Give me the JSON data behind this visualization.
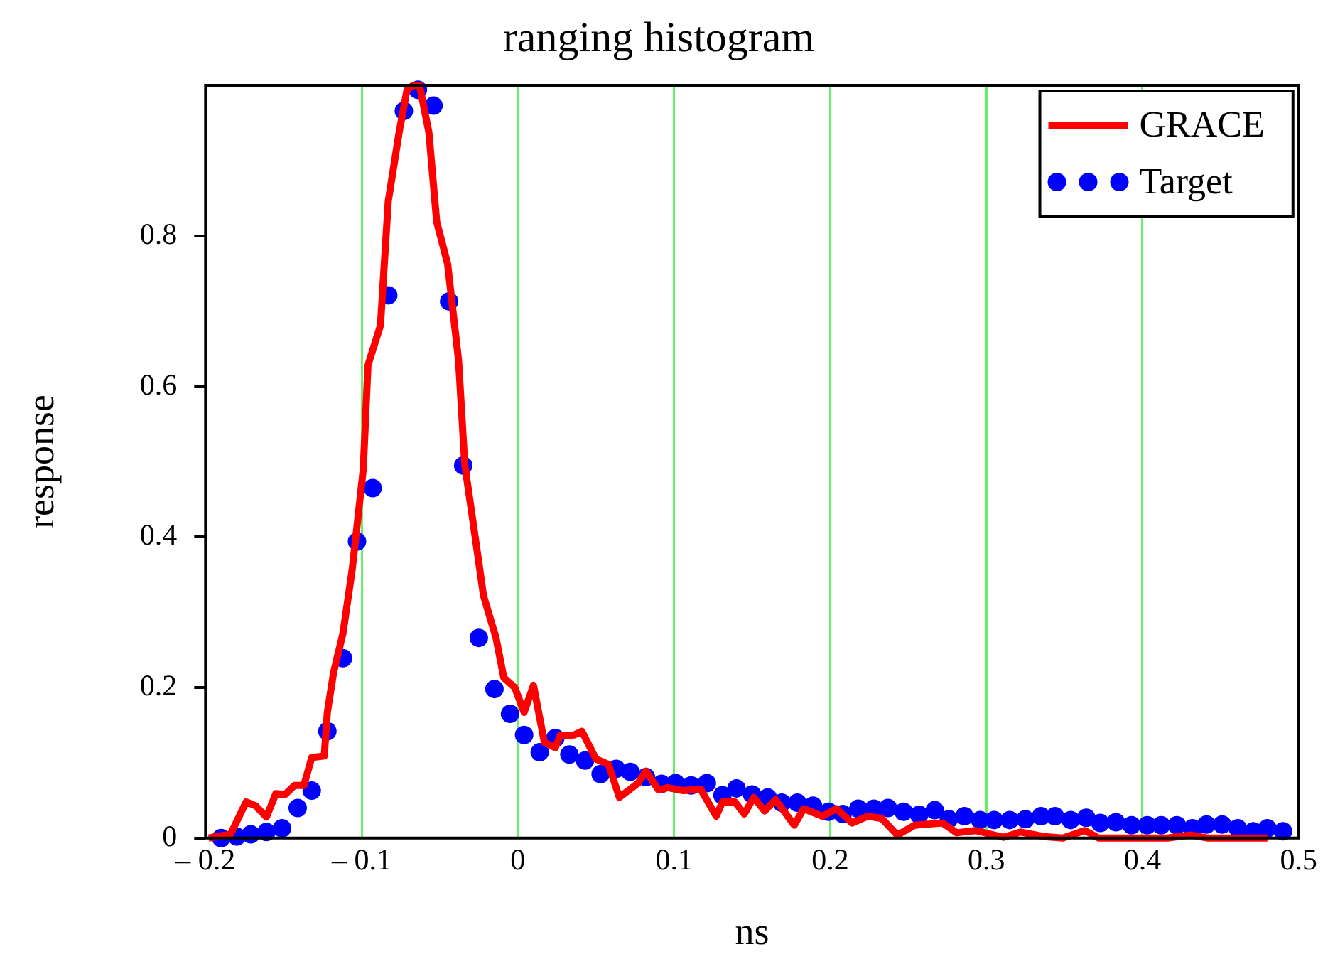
{
  "chart_data": {
    "type": "line",
    "title": "ranging histogram",
    "xlabel": "ns",
    "ylabel": "response",
    "xlim": [
      -0.2,
      0.5
    ],
    "xticks": [
      {
        "value": -0.2,
        "label": "– 0.2"
      },
      {
        "value": -0.1,
        "label": "– 0.1"
      },
      0,
      0.1,
      0.2,
      0.3,
      0.4,
      0.5
    ],
    "ylim": [
      0,
      1
    ],
    "yticks": [
      0,
      0.2,
      0.4,
      0.6,
      0.8
    ],
    "grid": "x",
    "legend": "top right",
    "series": [
      {
        "name": "GRACE",
        "color": "#ff0000",
        "marker": "none",
        "line_style": "solid",
        "x": [
          -0.198,
          -0.184,
          -0.174,
          -0.168,
          -0.161,
          -0.155,
          -0.149,
          -0.143,
          -0.137,
          -0.132,
          -0.124,
          -0.122,
          -0.118,
          -0.112,
          -0.106,
          -0.099,
          -0.096,
          -0.088,
          -0.083,
          -0.076,
          -0.071,
          -0.067,
          -0.063,
          -0.057,
          -0.052,
          -0.045,
          -0.038,
          -0.034,
          -0.029,
          -0.022,
          -0.014,
          -0.009,
          -0.002,
          0.004,
          0.01,
          0.017,
          0.024,
          0.027,
          0.036,
          0.041,
          0.05,
          0.058,
          0.065,
          0.077,
          0.082,
          0.09,
          0.096,
          0.106,
          0.117,
          0.127,
          0.131,
          0.139,
          0.145,
          0.151,
          0.158,
          0.165,
          0.177,
          0.183,
          0.195,
          0.204,
          0.214,
          0.224,
          0.233,
          0.243,
          0.254,
          0.272,
          0.281,
          0.293,
          0.311,
          0.322,
          0.337,
          0.349,
          0.363,
          0.372,
          0.416,
          0.431,
          0.442,
          0.48
        ],
        "values": [
          0,
          0.005,
          0.048,
          0.043,
          0.028,
          0.059,
          0.058,
          0.07,
          0.07,
          0.107,
          0.109,
          0.167,
          0.22,
          0.272,
          0.358,
          0.49,
          0.628,
          0.681,
          0.846,
          0.938,
          0.994,
          1,
          1,
          0.938,
          0.819,
          0.763,
          0.635,
          0.496,
          0.424,
          0.322,
          0.266,
          0.213,
          0.2,
          0.167,
          0.203,
          0.127,
          0.12,
          0.136,
          0.137,
          0.142,
          0.105,
          0.098,
          0.054,
          0.073,
          0.089,
          0.064,
          0.067,
          0.063,
          0.065,
          0.029,
          0.048,
          0.048,
          0.032,
          0.054,
          0.036,
          0.051,
          0.017,
          0.039,
          0.029,
          0.039,
          0.02,
          0.029,
          0.026,
          0.004,
          0.017,
          0.02,
          0.007,
          0.01,
          0.001,
          0.008,
          0.002,
          0,
          0.01,
          0,
          0,
          0.004,
          0,
          0
        ]
      },
      {
        "name": "Target",
        "type": "scatter",
        "color": "#0000ff",
        "marker": "circle",
        "x": [
          -0.19,
          -0.18,
          -0.171,
          -0.161,
          -0.151,
          -0.141,
          -0.132,
          -0.122,
          -0.112,
          -0.103,
          -0.093,
          -0.083,
          -0.073,
          -0.064,
          -0.054,
          -0.044,
          -0.035,
          -0.025,
          -0.015,
          -0.005,
          0.004,
          0.014,
          0.024,
          0.033,
          0.043,
          0.053,
          0.063,
          0.072,
          0.082,
          0.092,
          0.101,
          0.111,
          0.121,
          0.131,
          0.14,
          0.15,
          0.16,
          0.169,
          0.179,
          0.189,
          0.199,
          0.208,
          0.218,
          0.228,
          0.237,
          0.247,
          0.257,
          0.267,
          0.276,
          0.286,
          0.296,
          0.305,
          0.315,
          0.325,
          0.335,
          0.344,
          0.354,
          0.364,
          0.373,
          0.383,
          0.393,
          0.403,
          0.412,
          0.422,
          0.432,
          0.441,
          0.451,
          0.461,
          0.471,
          0.48,
          0.49
        ],
        "values": [
          0,
          0.002,
          0.005,
          0.008,
          0.013,
          0.04,
          0.063,
          0.142,
          0.239,
          0.394,
          0.465,
          0.721,
          0.966,
          0.994,
          0.973,
          0.713,
          0.495,
          0.266,
          0.198,
          0.165,
          0.137,
          0.114,
          0.133,
          0.111,
          0.103,
          0.085,
          0.092,
          0.088,
          0.081,
          0.072,
          0.073,
          0.07,
          0.073,
          0.057,
          0.066,
          0.058,
          0.054,
          0.047,
          0.047,
          0.043,
          0.035,
          0.032,
          0.039,
          0.039,
          0.04,
          0.035,
          0.031,
          0.037,
          0.025,
          0.029,
          0.024,
          0.024,
          0.024,
          0.025,
          0.029,
          0.029,
          0.024,
          0.027,
          0.02,
          0.021,
          0.017,
          0.017,
          0.017,
          0.017,
          0.013,
          0.018,
          0.018,
          0.013,
          0.009,
          0.013,
          0.009
        ]
      }
    ]
  }
}
